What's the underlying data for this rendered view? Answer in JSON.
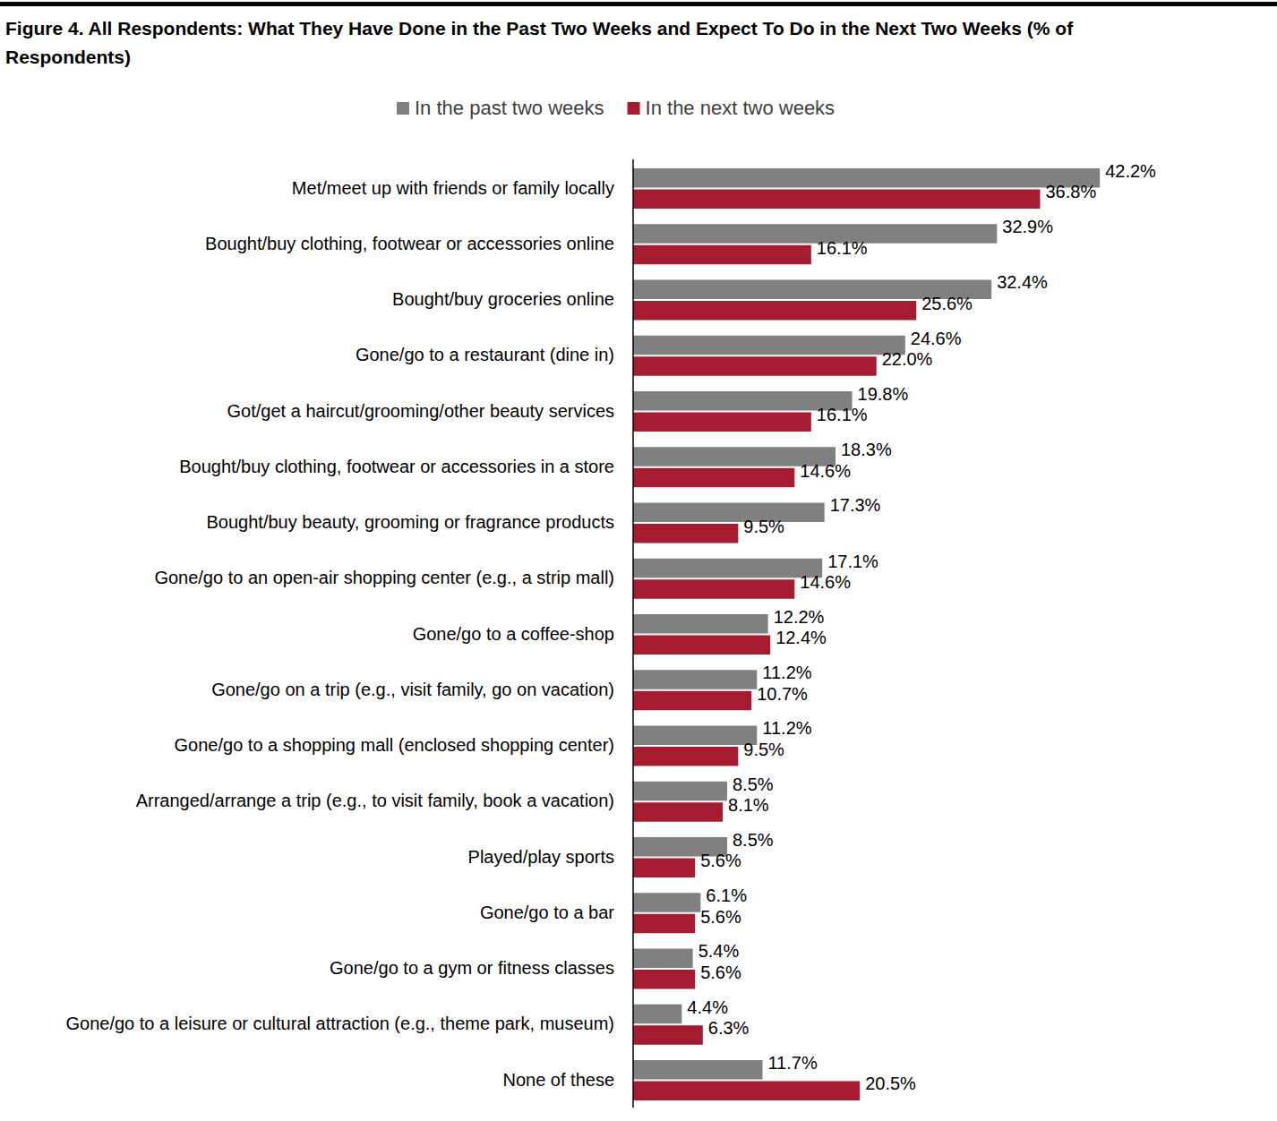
{
  "chart_data": {
    "type": "bar",
    "orientation": "horizontal",
    "title": "Figure 4. All Respondents: What They Have Done in the Past Two Weeks and Expect To Do in the Next Two Weeks (% of Respondents)",
    "categories": [
      "Met/meet up with friends or family locally",
      "Bought/buy clothing, footwear or accessories online",
      "Bought/buy groceries online",
      "Gone/go to a restaurant (dine in)",
      "Got/get a haircut/grooming/other beauty services",
      "Bought/buy clothing, footwear or accessories in a store",
      "Bought/buy beauty, grooming or fragrance products",
      "Gone/go to an open-air shopping center (e.g., a strip mall)",
      "Gone/go to a coffee-shop",
      "Gone/go on a trip (e.g., visit family, go on vacation)",
      "Gone/go to a shopping mall (enclosed shopping center)",
      "Arranged/arrange a trip (e.g., to visit family, book a vacation)",
      "Played/play sports",
      "Gone/go to a bar",
      "Gone/go to a gym or fitness classes",
      "Gone/go to a leisure or cultural attraction (e.g., theme park, museum)",
      "None of these"
    ],
    "series": [
      {
        "name": "In the past two weeks",
        "color": "#808080",
        "values": [
          42.2,
          32.9,
          32.4,
          24.6,
          19.8,
          18.3,
          17.3,
          17.1,
          12.2,
          11.2,
          11.2,
          8.5,
          8.5,
          6.1,
          5.4,
          4.4,
          11.7
        ],
        "value_labels": [
          "42.2%",
          "32.9%",
          "32.4%",
          "24.6%",
          "19.8%",
          "18.3%",
          "17.3%",
          "17.1%",
          "12.2%",
          "11.2%",
          "11.2%",
          "8.5%",
          "8.5%",
          "6.1%",
          "5.4%",
          "4.4%",
          "11.7%"
        ]
      },
      {
        "name": "In the next two weeks",
        "color": "#A51C30",
        "values": [
          36.8,
          16.1,
          25.6,
          22.0,
          16.1,
          14.6,
          9.5,
          14.6,
          12.4,
          10.7,
          9.5,
          8.1,
          5.6,
          5.6,
          5.6,
          6.3,
          20.5
        ],
        "value_labels": [
          "36.8%",
          "16.1%",
          "25.6%",
          "22.0%",
          "16.1%",
          "14.6%",
          "9.5%",
          "14.6%",
          "12.4%",
          "10.7%",
          "9.5%",
          "8.1%",
          "5.6%",
          "5.6%",
          "5.6%",
          "6.3%",
          "20.5%"
        ]
      }
    ],
    "xlim": [
      0,
      50
    ],
    "data_labels": true,
    "legend": "top",
    "tick_labels": "y",
    "grid": false
  }
}
